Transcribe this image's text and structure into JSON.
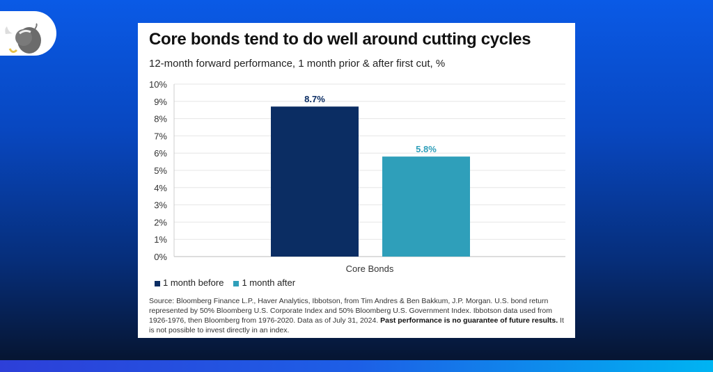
{
  "colors": {
    "before": "#0b2d63",
    "after": "#2f9fba",
    "grid": "#e6e6e6"
  },
  "logo": {
    "icon": "bull-mascot-icon"
  },
  "chart_data": {
    "type": "bar",
    "title": "Core bonds tend to do well around cutting cycles",
    "subtitle": "12-month forward performance, 1 month prior & after first cut, %",
    "categories": [
      "Core Bonds"
    ],
    "series": [
      {
        "name": "1 month before",
        "values": [
          8.7
        ],
        "label": "8.7%"
      },
      {
        "name": "1 month after",
        "values": [
          5.8
        ],
        "label": "5.8%"
      }
    ],
    "ylim": [
      0,
      10
    ],
    "yticks": [
      "0%",
      "1%",
      "2%",
      "3%",
      "4%",
      "5%",
      "6%",
      "7%",
      "8%",
      "9%",
      "10%"
    ],
    "grid": true,
    "legend": "bottom-left",
    "source": "Source: Bloomberg Finance L.P., Haver Analytics, Ibbotson, from Tim Andres & Ben Bakkum, J.P. Morgan. U.S. bond return represented by 50% Bloomberg U.S. Corporate Index and 50% Bloomberg U.S. Government Index. Ibbotson data used from 1926-1976, then Bloomberg from 1976-2020. Data as of July 31, 2024.",
    "disclaimer_bold": "Past performance is no guarantee of future results.",
    "disclaimer": "It is not possible to invest directly in an index."
  }
}
